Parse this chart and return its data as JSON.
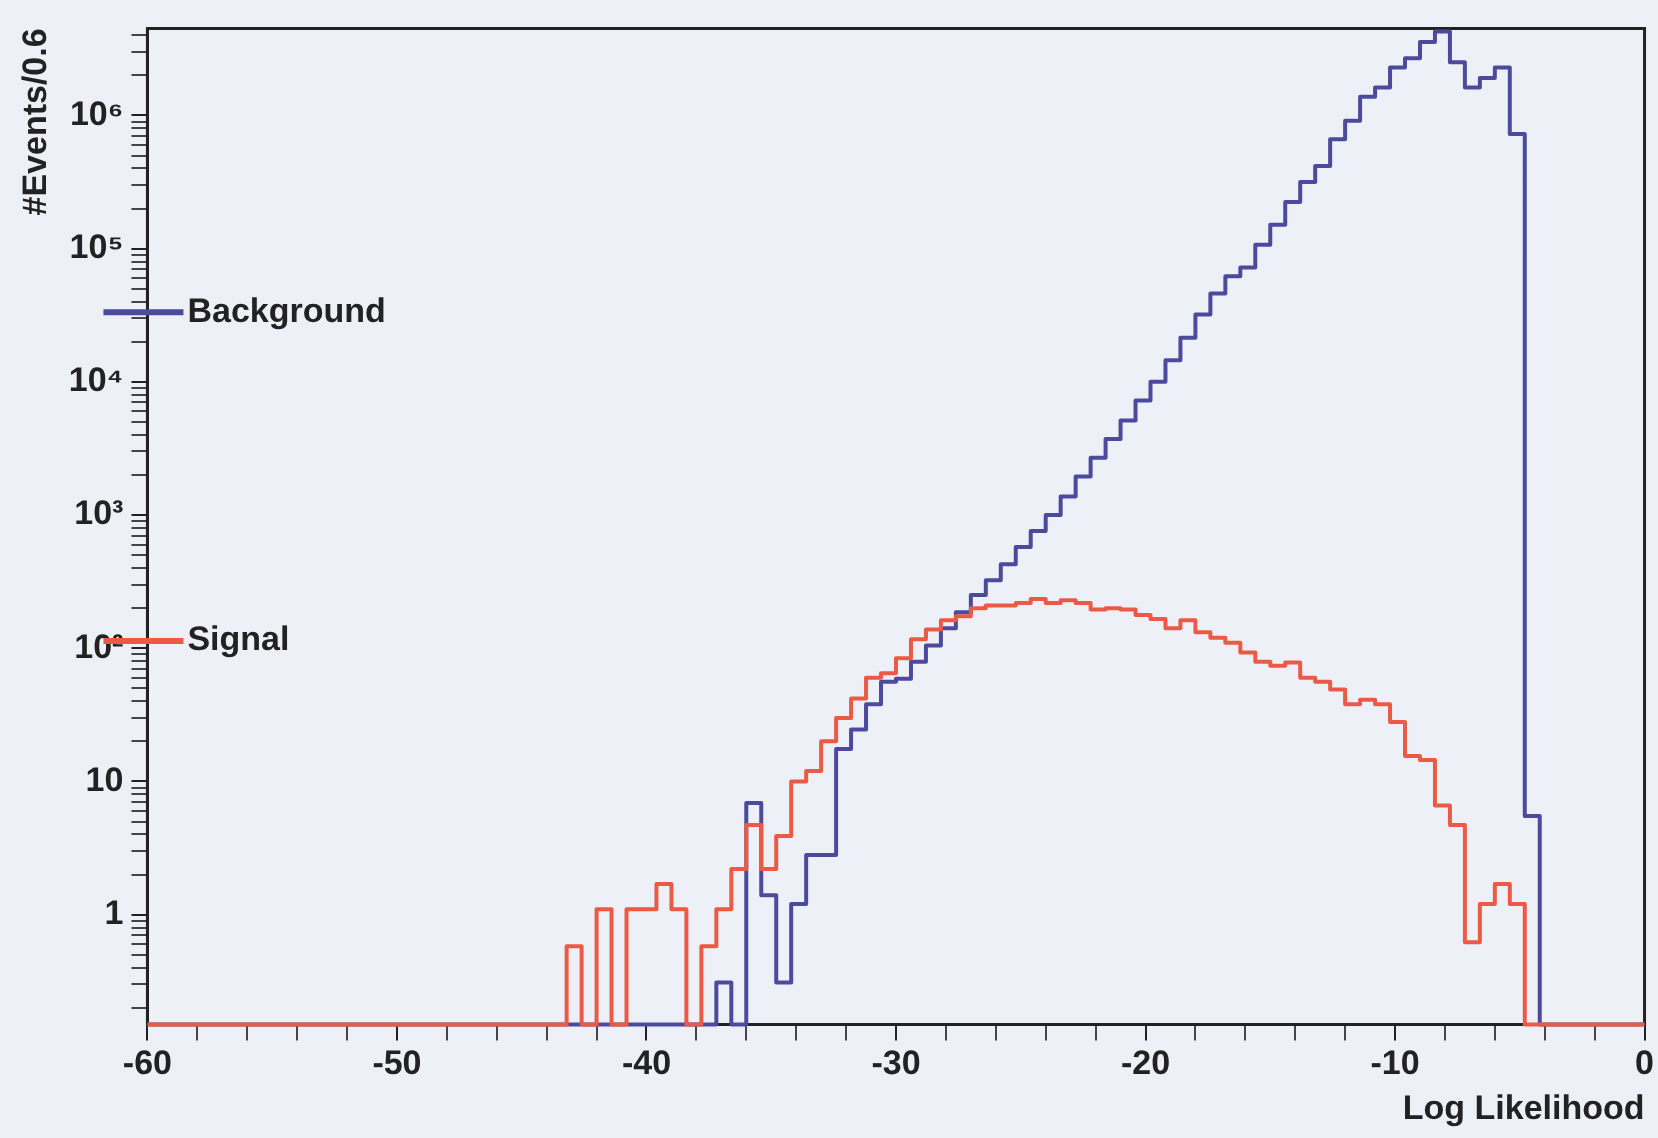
{
  "chart_data": {
    "type": "histogram",
    "xlabel": "Log Likelihood",
    "ylabel": "#Events/0.6",
    "bins": [
      -60,
      -59.4,
      -58.8,
      -58.2,
      -57.6,
      -57,
      -56.4,
      -55.8,
      -55.2,
      -54.6,
      -54,
      -53.4,
      -52.8,
      -52.2,
      -51.6,
      -51,
      -50.4,
      -49.8,
      -49.2,
      -48.6,
      -48,
      -47.4,
      -46.8,
      -46.2,
      -45.6,
      -45,
      -44.4,
      -43.8,
      -43.2,
      -42.6,
      -42,
      -41.4,
      -40.8,
      -40.2,
      -39.6,
      -39,
      -38.4,
      -37.8,
      -37.2,
      -36.6,
      -36,
      -35.4,
      -34.8,
      -34.2,
      -33.6,
      -33,
      -32.4,
      -31.8,
      -31.2,
      -30.6,
      -30,
      -29.4,
      -28.8,
      -28.2,
      -27.6,
      -27,
      -26.4,
      -25.8,
      -25.2,
      -24.6,
      -24,
      -23.4,
      -22.8,
      -22.2,
      -21.6,
      -21,
      -20.4,
      -19.8,
      -19.2,
      -18.6,
      -18,
      -17.4,
      -16.8,
      -16.2,
      -15.6,
      -15,
      -14.4,
      -13.8,
      -13.2,
      -12.6,
      -12,
      -11.4,
      -10.8,
      -10.2,
      -9.6,
      -9,
      -8.4,
      -7.8,
      -7.2,
      -6.6,
      -6,
      -5.4,
      -4.8,
      -4.2,
      -3.6,
      -3,
      -2.4,
      -1.8,
      -1.2,
      -0.6,
      0
    ],
    "series": [
      {
        "name": "Background",
        "color": "#4b4a9c",
        "values": [
          null,
          null,
          null,
          null,
          null,
          null,
          null,
          null,
          null,
          null,
          null,
          null,
          null,
          null,
          null,
          null,
          null,
          null,
          null,
          null,
          null,
          null,
          null,
          null,
          null,
          null,
          null,
          null,
          null,
          null,
          null,
          null,
          null,
          null,
          null,
          null,
          null,
          null,
          0.31,
          null,
          6.9,
          1.4,
          0.31,
          1.2,
          2.8,
          2.8,
          17.5,
          24.5,
          38,
          56,
          59,
          79,
          105,
          141,
          186,
          251,
          324,
          427,
          575,
          759,
          1000,
          1380,
          1950,
          2690,
          3720,
          5130,
          7240,
          10000,
          14500,
          21400,
          32000,
          46000,
          62000,
          72000,
          107000,
          151000,
          224000,
          316000,
          417000,
          661000,
          912000,
          1380000,
          1620000,
          2290000,
          2690000,
          3550000,
          4270000,
          2510000,
          1620000,
          1910000,
          2290000,
          724000,
          5.5,
          null,
          null,
          null,
          null,
          null,
          null,
          null
        ]
      },
      {
        "name": "Signal",
        "color": "#ea5a45",
        "values": [
          null,
          null,
          null,
          null,
          null,
          null,
          null,
          null,
          null,
          null,
          null,
          null,
          null,
          null,
          null,
          null,
          null,
          null,
          null,
          null,
          null,
          null,
          null,
          null,
          null,
          null,
          null,
          null,
          0.58,
          null,
          1.1,
          null,
          1.1,
          1.1,
          1.7,
          1.1,
          null,
          0.58,
          1.1,
          2.2,
          4.7,
          2.2,
          3.9,
          10,
          12,
          20,
          30,
          42,
          60,
          65,
          84,
          117,
          138,
          162,
          174,
          200,
          209,
          209,
          219,
          234,
          219,
          229,
          219,
          195,
          200,
          195,
          178,
          166,
          141,
          162,
          132,
          120,
          110,
          93,
          79,
          74,
          78,
          60,
          56,
          49,
          38,
          41,
          38,
          28,
          15.5,
          14.5,
          6.6,
          4.7,
          0.62,
          1.2,
          1.7,
          1.2,
          null,
          null,
          null,
          null,
          null,
          null,
          null,
          null
        ]
      }
    ],
    "log": "y",
    "xlim": [
      -60,
      0
    ],
    "xticks": [
      -60,
      {
        "value": -58,
        "label": null
      },
      {
        "value": -56,
        "label": null
      },
      {
        "value": -54,
        "label": null
      },
      {
        "value": -52,
        "label": null
      },
      -50,
      {
        "value": -48,
        "label": null
      },
      {
        "value": -46,
        "label": null
      },
      {
        "value": -44,
        "label": null
      },
      {
        "value": -42,
        "label": null
      },
      -40,
      {
        "value": -38,
        "label": null
      },
      {
        "value": -36,
        "label": null
      },
      {
        "value": -34,
        "label": null
      },
      {
        "value": -32,
        "label": null
      },
      -30,
      {
        "value": -28,
        "label": null
      },
      {
        "value": -26,
        "label": null
      },
      {
        "value": -24,
        "label": null
      },
      {
        "value": -22,
        "label": null
      },
      -20,
      {
        "value": -18,
        "label": null
      },
      {
        "value": -16,
        "label": null
      },
      {
        "value": -14,
        "label": null
      },
      {
        "value": -12,
        "label": null
      },
      -10,
      {
        "value": -8,
        "label": null
      },
      {
        "value": -6,
        "label": null
      },
      {
        "value": -4,
        "label": null
      },
      {
        "value": -2,
        "label": null
      },
      0
    ],
    "ylim": [
      0.15,
      4500000
    ],
    "yticks": [
      {
        "value": 0.2,
        "label": null
      },
      {
        "value": 0.3,
        "label": null
      },
      {
        "value": 0.4,
        "label": null
      },
      {
        "value": 0.5,
        "label": null
      },
      {
        "value": 0.6,
        "label": null
      },
      {
        "value": 0.7,
        "label": null
      },
      {
        "value": 0.8,
        "label": null
      },
      {
        "value": 0.9,
        "label": null
      },
      1,
      {
        "value": 2,
        "label": null
      },
      {
        "value": 3,
        "label": null
      },
      {
        "value": 4,
        "label": null
      },
      {
        "value": 5,
        "label": null
      },
      {
        "value": 6,
        "label": null
      },
      {
        "value": 7,
        "label": null
      },
      {
        "value": 8,
        "label": null
      },
      {
        "value": 9,
        "label": null
      },
      10,
      {
        "value": 20,
        "label": null
      },
      {
        "value": 30,
        "label": null
      },
      {
        "value": 40,
        "label": null
      },
      {
        "value": 50,
        "label": null
      },
      {
        "value": 60,
        "label": null
      },
      {
        "value": 70,
        "label": null
      },
      {
        "value": 80,
        "label": null
      },
      {
        "value": 90,
        "label": null
      },
      {
        "value": 100,
        "label": "10²"
      },
      {
        "value": 200,
        "label": null
      },
      {
        "value": 300,
        "label": null
      },
      {
        "value": 400,
        "label": null
      },
      {
        "value": 500,
        "label": null
      },
      {
        "value": 600,
        "label": null
      },
      {
        "value": 700,
        "label": null
      },
      {
        "value": 800,
        "label": null
      },
      {
        "value": 900,
        "label": null
      },
      {
        "value": 1000,
        "label": "10³"
      },
      {
        "value": 2000,
        "label": null
      },
      {
        "value": 3000,
        "label": null
      },
      {
        "value": 4000,
        "label": null
      },
      {
        "value": 5000,
        "label": null
      },
      {
        "value": 6000,
        "label": null
      },
      {
        "value": 7000,
        "label": null
      },
      {
        "value": 8000,
        "label": null
      },
      {
        "value": 9000,
        "label": null
      },
      {
        "value": 10000,
        "label": "10⁴"
      },
      {
        "value": 20000,
        "label": null
      },
      {
        "value": 30000,
        "label": null
      },
      {
        "value": 40000,
        "label": null
      },
      {
        "value": 50000,
        "label": null
      },
      {
        "value": 60000,
        "label": null
      },
      {
        "value": 70000,
        "label": null
      },
      {
        "value": 80000,
        "label": null
      },
      {
        "value": 90000,
        "label": null
      },
      {
        "value": 100000,
        "label": "10⁵"
      },
      {
        "value": 200000,
        "label": null
      },
      {
        "value": 300000,
        "label": null
      },
      {
        "value": 400000,
        "label": null
      },
      {
        "value": 500000,
        "label": null
      },
      {
        "value": 600000,
        "label": null
      },
      {
        "value": 700000,
        "label": null
      },
      {
        "value": 800000,
        "label": null
      },
      {
        "value": 900000,
        "label": null
      },
      {
        "value": 1000000,
        "label": "10⁶"
      },
      {
        "value": 2000000,
        "label": null
      },
      {
        "value": 3000000,
        "label": null
      },
      {
        "value": 4000000,
        "label": null
      }
    ],
    "grid": false,
    "legend": "left",
    "marker": "none",
    "line_style": "solid"
  }
}
